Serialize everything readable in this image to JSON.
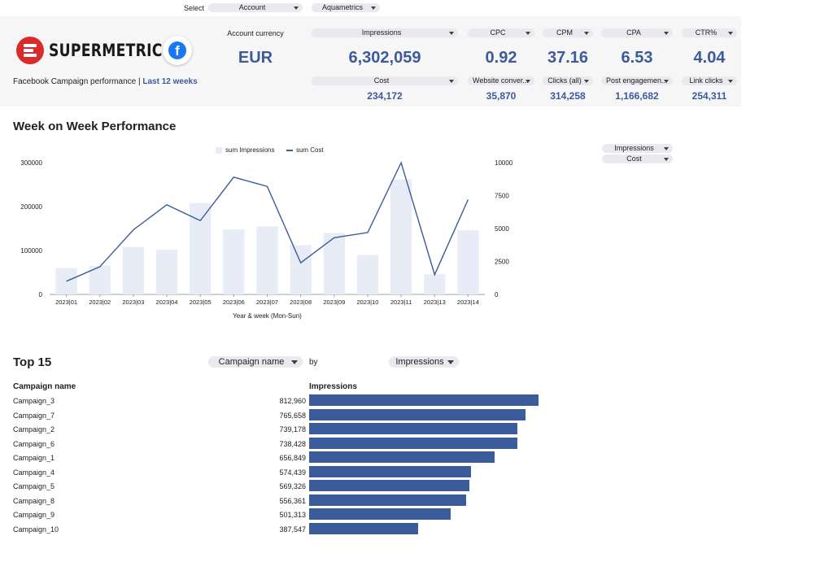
{
  "select_bar": {
    "label": "Select",
    "account_dropdown": "Account",
    "account_value_dropdown": "Aquametrics"
  },
  "header": {
    "brand": "SUPERMETRICS",
    "facebook_icon_glyph": "f",
    "subtitle_prefix": "Facebook Campaign performance | ",
    "subtitle_period": "Last 12 weeks",
    "currency_label": "Account currency",
    "currency_value": "EUR",
    "kpis_top": [
      {
        "label": "Impressions",
        "value": "6,302,059"
      },
      {
        "label": "CPC",
        "value": "0.92"
      },
      {
        "label": "CPM",
        "value": "37.16"
      },
      {
        "label": "CPA",
        "value": "6.53"
      },
      {
        "label": "CTR%",
        "value": "4.04"
      }
    ],
    "kpis_bottom": [
      {
        "label": "Cost",
        "value": "234,172"
      },
      {
        "label": "Website conver...",
        "value": "35,870"
      },
      {
        "label": "Clicks (all)",
        "value": "314,258"
      },
      {
        "label": "Post engagemen...",
        "value": "1,166,682"
      },
      {
        "label": "Link clicks",
        "value": "254,311"
      }
    ]
  },
  "wow": {
    "title": "Week on Week Performance",
    "metric_dropdown_1": "Impressions",
    "metric_dropdown_2": "Cost"
  },
  "chart_data": {
    "type": "bar+line",
    "categories": [
      "2023|01",
      "2023|02",
      "2023|03",
      "2023|04",
      "2023|05",
      "2023|06",
      "2023|07",
      "2023|08",
      "2023|09",
      "2023|10",
      "2023|11",
      "2023|13",
      "2023|14"
    ],
    "series": [
      {
        "name": "sum Impressions",
        "type": "bar",
        "axis": "left",
        "values": [
          60000,
          65000,
          108000,
          102000,
          208000,
          148000,
          155000,
          112000,
          140000,
          90000,
          262000,
          46000,
          146000
        ]
      },
      {
        "name": "sum Cost",
        "type": "line",
        "axis": "right",
        "values": [
          1000,
          2100,
          4900,
          6800,
          5600,
          8900,
          8200,
          2400,
          4300,
          4700,
          10000,
          1500,
          7200
        ]
      }
    ],
    "xlabel": "Year & week (Mon-Sun)",
    "ylim_left": [
      0,
      300000
    ],
    "ylim_right": [
      0,
      10000
    ],
    "yticks_left": [
      "0",
      "100000",
      "200000",
      "300000"
    ],
    "yticks_right": [
      "0",
      "2500",
      "5000",
      "7500",
      "10000"
    ],
    "legend_position": "top",
    "grid": false,
    "colors": {
      "bar": "#e8ecf6",
      "line": "#3b5b9a"
    }
  },
  "top15": {
    "title": "Top 15",
    "dimension_dropdown": "Campaign name",
    "by_label": "by",
    "metric_dropdown": "Impressions",
    "col_name": "Campaign name",
    "col_metric": "Impressions",
    "max_value": 812960,
    "rows": [
      {
        "name": "Campaign_3",
        "display": "812,960",
        "value": 812960
      },
      {
        "name": "Campaign_7",
        "display": "765,658",
        "value": 765658
      },
      {
        "name": "Campaign_2",
        "display": "739,178",
        "value": 739178
      },
      {
        "name": "Campaign_6",
        "display": "738,428",
        "value": 738428
      },
      {
        "name": "Campaign_1",
        "display": "656,849",
        "value": 656849
      },
      {
        "name": "Campaign_4",
        "display": "574,439",
        "value": 574439
      },
      {
        "name": "Campaign_5",
        "display": "569,326",
        "value": 569326
      },
      {
        "name": "Campaign_8",
        "display": "556,361",
        "value": 556361
      },
      {
        "name": "Campaign_9",
        "display": "501,313",
        "value": 501313
      },
      {
        "name": "Campaign_10",
        "display": "387,547",
        "value": 387547
      }
    ]
  },
  "colors": {
    "accent": "#3b5b9a",
    "brand_red": "#d92b2b",
    "facebook_blue": "#1877f2"
  }
}
